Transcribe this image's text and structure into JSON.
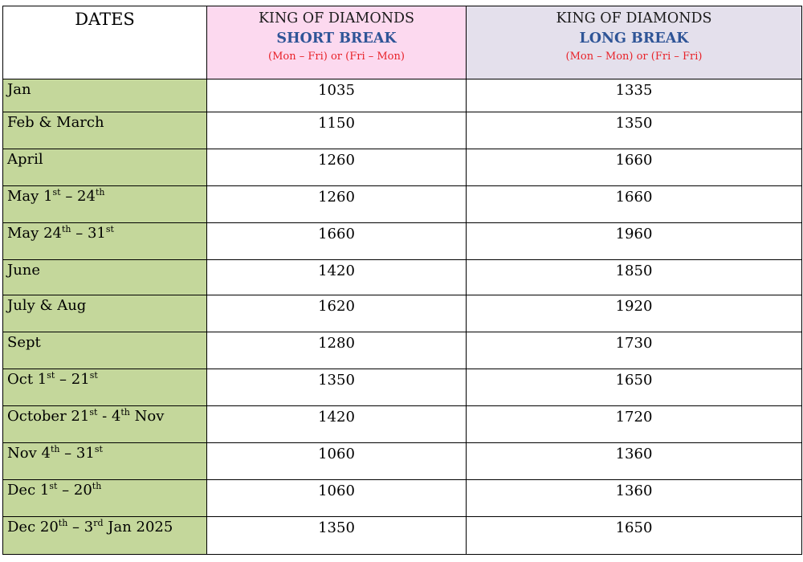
{
  "colors": {
    "short_header_bg": "#fcd9ef",
    "long_header_bg": "#e4e0ec",
    "dates_column_bg": "#c4d79b",
    "header_blue": "#2f5597",
    "header_red": "#e8232a"
  },
  "headers": {
    "dates": "DATES",
    "short": {
      "line1": "KING OF DIAMONDS",
      "line2": "SHORT BREAK",
      "line3": "(Mon – Fri) or (Fri – Mon)"
    },
    "long": {
      "line1": "KING OF DIAMONDS",
      "line2": "LONG BREAK",
      "line3": "(Mon – Mon) or (Fri – Fri)"
    }
  },
  "rows": [
    {
      "date": "Jan",
      "short": "1035",
      "long": "1335"
    },
    {
      "date": "Feb & March",
      "short": "1150",
      "long": "1350"
    },
    {
      "date": "April",
      "short": "1260",
      "long": "1660"
    },
    {
      "date": "May 1st – 24th",
      "short": "1260",
      "long": "1660"
    },
    {
      "date": "May 24th – 31st",
      "short": "1660",
      "long": "1960"
    },
    {
      "date": "June",
      "short": "1420",
      "long": "1850"
    },
    {
      "date": "July & Aug",
      "short": "1620",
      "long": "1920"
    },
    {
      "date": "Sept",
      "short": "1280",
      "long": "1730"
    },
    {
      "date": "Oct 1st – 21st",
      "short": "1350",
      "long": "1650"
    },
    {
      "date": "October 21st - 4th Nov",
      "short": "1420",
      "long": "1720"
    },
    {
      "date": "Nov 4th – 31st",
      "short": "1060",
      "long": "1360"
    },
    {
      "date": "Dec 1st – 20th",
      "short": "1060",
      "long": "1360"
    },
    {
      "date": "Dec 20th – 3rd Jan 2025",
      "short": "1350",
      "long": "1650"
    }
  ]
}
